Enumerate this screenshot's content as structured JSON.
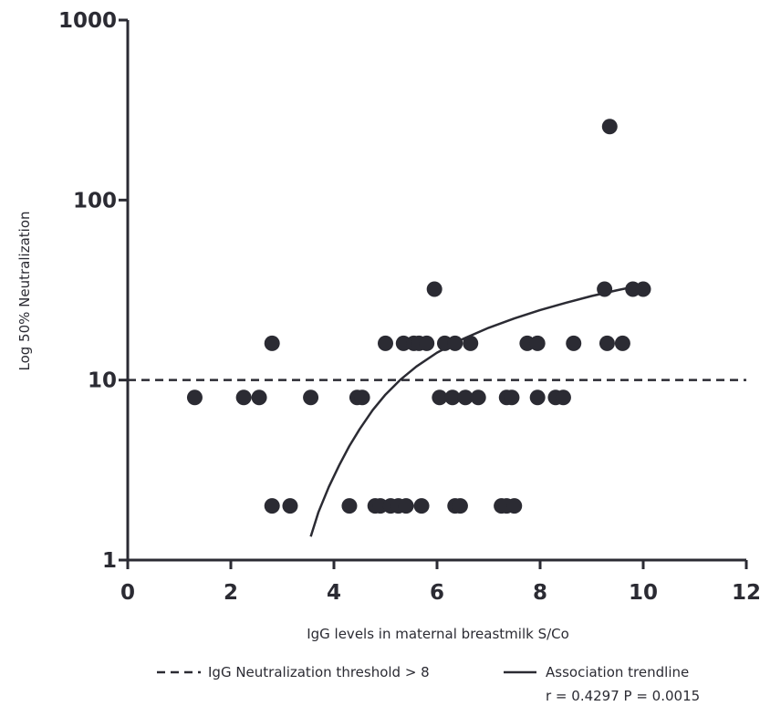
{
  "chart_data": {
    "type": "scatter",
    "title": "",
    "xlabel": "IgG levels in maternal breastmilk S/Co",
    "ylabel": "Log 50% Neutralization",
    "xlim": [
      0,
      12
    ],
    "ylim": [
      1,
      1000
    ],
    "yscale": "log",
    "xticks": [
      0,
      2,
      4,
      6,
      8,
      10,
      12
    ],
    "xtick_labels": [
      "0",
      "2",
      "4",
      "6",
      "8",
      "10",
      "12"
    ],
    "yticks": [
      1,
      10,
      100,
      1000
    ],
    "ytick_labels": [
      "1",
      "10",
      "100",
      "1000"
    ],
    "grid": false,
    "color": "#2b2b33",
    "points": [
      {
        "x": 1.3,
        "y": 8
      },
      {
        "x": 2.25,
        "y": 8
      },
      {
        "x": 2.55,
        "y": 8
      },
      {
        "x": 3.55,
        "y": 8
      },
      {
        "x": 4.45,
        "y": 8
      },
      {
        "x": 4.55,
        "y": 8
      },
      {
        "x": 6.05,
        "y": 8
      },
      {
        "x": 6.3,
        "y": 8
      },
      {
        "x": 6.55,
        "y": 8
      },
      {
        "x": 6.8,
        "y": 8
      },
      {
        "x": 7.35,
        "y": 8
      },
      {
        "x": 7.45,
        "y": 8
      },
      {
        "x": 7.95,
        "y": 8
      },
      {
        "x": 8.3,
        "y": 8
      },
      {
        "x": 8.45,
        "y": 8
      },
      {
        "x": 2.8,
        "y": 16
      },
      {
        "x": 5.0,
        "y": 16
      },
      {
        "x": 5.35,
        "y": 16
      },
      {
        "x": 5.55,
        "y": 16
      },
      {
        "x": 5.65,
        "y": 16
      },
      {
        "x": 5.8,
        "y": 16
      },
      {
        "x": 6.15,
        "y": 16
      },
      {
        "x": 6.35,
        "y": 16
      },
      {
        "x": 6.65,
        "y": 16
      },
      {
        "x": 7.75,
        "y": 16
      },
      {
        "x": 7.95,
        "y": 16
      },
      {
        "x": 8.65,
        "y": 16
      },
      {
        "x": 9.3,
        "y": 16
      },
      {
        "x": 9.6,
        "y": 16
      },
      {
        "x": 5.95,
        "y": 32
      },
      {
        "x": 9.25,
        "y": 32
      },
      {
        "x": 9.8,
        "y": 32
      },
      {
        "x": 10.0,
        "y": 32
      },
      {
        "x": 9.35,
        "y": 256
      },
      {
        "x": 2.8,
        "y": 2
      },
      {
        "x": 3.15,
        "y": 2
      },
      {
        "x": 4.3,
        "y": 2
      },
      {
        "x": 4.8,
        "y": 2
      },
      {
        "x": 4.9,
        "y": 2
      },
      {
        "x": 5.1,
        "y": 2
      },
      {
        "x": 5.25,
        "y": 2
      },
      {
        "x": 5.4,
        "y": 2
      },
      {
        "x": 5.7,
        "y": 2
      },
      {
        "x": 6.35,
        "y": 2
      },
      {
        "x": 6.45,
        "y": 2
      },
      {
        "x": 7.25,
        "y": 2
      },
      {
        "x": 7.35,
        "y": 2
      },
      {
        "x": 7.5,
        "y": 2
      }
    ],
    "threshold": {
      "y": 10,
      "style": "dashed",
      "label": "IgG Neutralization threshold > 8"
    },
    "trendline": {
      "label": "Association trendline",
      "stats": "r = 0.4297  P = 0.0015",
      "x": [
        3.55,
        3.7,
        3.9,
        4.1,
        4.3,
        4.5,
        4.75,
        5.0,
        5.3,
        5.6,
        6.0,
        6.5,
        7.0,
        7.5,
        8.0,
        8.5,
        9.0,
        9.5,
        9.95
      ],
      "y": [
        1.35,
        1.85,
        2.55,
        3.35,
        4.3,
        5.35,
        6.8,
        8.3,
        10.1,
        11.9,
        14.2,
        16.9,
        19.5,
        22.0,
        24.5,
        26.9,
        29.3,
        31.6,
        33.6
      ]
    },
    "legend_position": "bottom"
  }
}
